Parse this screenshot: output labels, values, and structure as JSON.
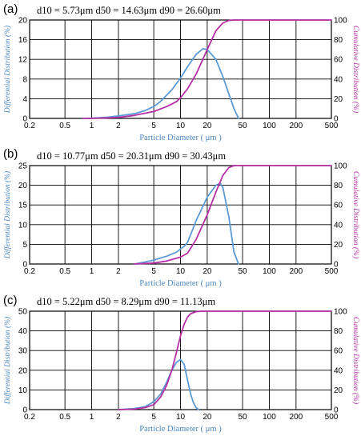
{
  "colors": {
    "differential": "#5b9bd5",
    "cumulative": "#b62fa6",
    "grid": "#000000"
  },
  "chart_data": [
    {
      "type": "line",
      "panel_label": "(a)",
      "stats": "d10 = 5.73μm   d50 = 14.63μm   d90 = 26.60μm",
      "xlabel": "Particle Diameter  ( μm )",
      "ylabel_left": "Differential Distribution (%)",
      "ylabel_right": "Cumulative Distribution (%)",
      "xscale": "log",
      "xlim": [
        0.2,
        500
      ],
      "x_ticks": [
        0.2,
        0.5,
        1,
        2,
        5,
        10,
        20,
        50,
        100,
        200,
        500
      ],
      "x_tick_labels": [
        "0.2",
        "0.5",
        "1",
        "2",
        "5",
        "10",
        "20",
        "50",
        "100",
        "200",
        "500"
      ],
      "ylim_left": [
        0,
        20
      ],
      "y_ticks_left": [
        0,
        4,
        8,
        12,
        16,
        20
      ],
      "y_tick_labels_left": [
        "0",
        "4",
        "8",
        "12",
        "16",
        "20"
      ],
      "ylim_right": [
        0,
        100
      ],
      "y_ticks_right": [
        0,
        20,
        40,
        60,
        80,
        100
      ],
      "y_tick_labels_right": [
        "0",
        "20",
        "40",
        "60",
        "80",
        "100"
      ],
      "grid": true,
      "series": [
        {
          "axis": "left",
          "x": [
            0.8,
            1,
            1.5,
            2,
            3,
            4,
            5,
            6,
            8,
            10,
            12,
            15,
            18,
            20,
            25,
            30,
            35,
            40,
            45
          ],
          "y": [
            0,
            0.05,
            0.25,
            0.5,
            0.95,
            1.6,
            2.4,
            3.5,
            5.8,
            8.2,
            10.5,
            13,
            14.2,
            14.0,
            12.0,
            8.5,
            5.0,
            2.0,
            0
          ]
        },
        {
          "axis": "right",
          "x": [
            0.8,
            1,
            2,
            3,
            5,
            7,
            9,
            10,
            12,
            15,
            20,
            25,
            30,
            35,
            40,
            50,
            500
          ],
          "y": [
            0,
            0,
            1,
            3,
            7,
            12,
            17,
            21,
            30,
            45,
            70,
            89,
            97,
            99.5,
            100,
            100,
            100
          ]
        }
      ]
    },
    {
      "type": "line",
      "panel_label": "(b)",
      "stats": "d10 = 10.77μm   d50 = 20.31μm   d90 = 30.43μm",
      "xlabel": "Particle Diameter  ( μm )",
      "ylabel_left": "Differential Distribution (%)",
      "ylabel_right": "Cumulative Distribution (%)",
      "xscale": "log",
      "xlim": [
        0.2,
        500
      ],
      "x_ticks": [
        0.2,
        0.5,
        1,
        2,
        5,
        10,
        20,
        50,
        100,
        200,
        500
      ],
      "x_tick_labels": [
        "0.2",
        "0.5",
        "1",
        "2",
        "5",
        "10",
        "20",
        "50",
        "100",
        "200",
        "500"
      ],
      "ylim_left": [
        0,
        25
      ],
      "y_ticks_left": [
        0,
        5,
        10,
        15,
        20,
        25
      ],
      "y_tick_labels_left": [
        "0",
        "5",
        "10",
        "15",
        "20",
        "25"
      ],
      "ylim_right": [
        0,
        100
      ],
      "y_ticks_right": [
        0,
        20,
        40,
        60,
        80,
        100
      ],
      "y_tick_labels_right": [
        "0",
        "20",
        "40",
        "60",
        "80",
        "100"
      ],
      "grid": true,
      "series": [
        {
          "axis": "left",
          "x": [
            3,
            4,
            5,
            7,
            9,
            11,
            12,
            15,
            20,
            25,
            28,
            30,
            35,
            40,
            45
          ],
          "y": [
            0,
            0.5,
            1,
            2,
            3,
            4.5,
            5.5,
            11,
            17,
            20,
            20.5,
            19.5,
            12,
            3,
            0
          ]
        },
        {
          "axis": "right",
          "x": [
            3,
            5,
            7,
            10,
            12,
            15,
            20,
            25,
            30,
            35,
            40,
            500
          ],
          "y": [
            0,
            1,
            3,
            7,
            11,
            25,
            50,
            73,
            90,
            98,
            100,
            100
          ]
        }
      ]
    },
    {
      "type": "line",
      "panel_label": "(c)",
      "stats": "d10 = 5.22μm   d50 = 8.29μm   d90 = 11.13μm",
      "xlabel": "Particle Diameter  ( μm )",
      "ylabel_left": "Differential Distribution (%)",
      "ylabel_right": "Cumulative Distribution (%)",
      "xscale": "log",
      "xlim": [
        0.2,
        500
      ],
      "x_ticks": [
        0.2,
        0.5,
        1,
        2,
        5,
        10,
        20,
        50,
        100,
        200,
        500
      ],
      "x_tick_labels": [
        "0.2",
        "0.5",
        "1",
        "2",
        "5",
        "10",
        "20",
        "50",
        "100",
        "200",
        "500"
      ],
      "ylim_left": [
        0,
        50
      ],
      "y_ticks_left": [
        0,
        10,
        20,
        30,
        40,
        50
      ],
      "y_tick_labels_left": [
        "0",
        "10",
        "20",
        "30",
        "40",
        "50"
      ],
      "ylim_right": [
        0,
        100
      ],
      "y_ticks_right": [
        0,
        20,
        40,
        60,
        80,
        100
      ],
      "y_tick_labels_right": [
        "0",
        "20",
        "40",
        "60",
        "80",
        "100"
      ],
      "grid": true,
      "series": [
        {
          "axis": "left",
          "x": [
            2,
            3,
            4,
            5,
            6,
            7,
            8,
            9,
            10,
            11,
            12,
            13,
            14,
            15,
            16
          ],
          "y": [
            0,
            0.5,
            1.5,
            4,
            8,
            14,
            20,
            24,
            25.5,
            23,
            15,
            8,
            3.5,
            1,
            0
          ]
        },
        {
          "axis": "right",
          "x": [
            2,
            3,
            4,
            5,
            6,
            7,
            8,
            9,
            10,
            11,
            12,
            13,
            15,
            17,
            500
          ],
          "y": [
            0,
            0.5,
            2,
            5,
            13,
            25,
            40,
            58,
            75,
            87,
            94,
            97.5,
            99.5,
            100,
            100
          ]
        }
      ]
    }
  ]
}
